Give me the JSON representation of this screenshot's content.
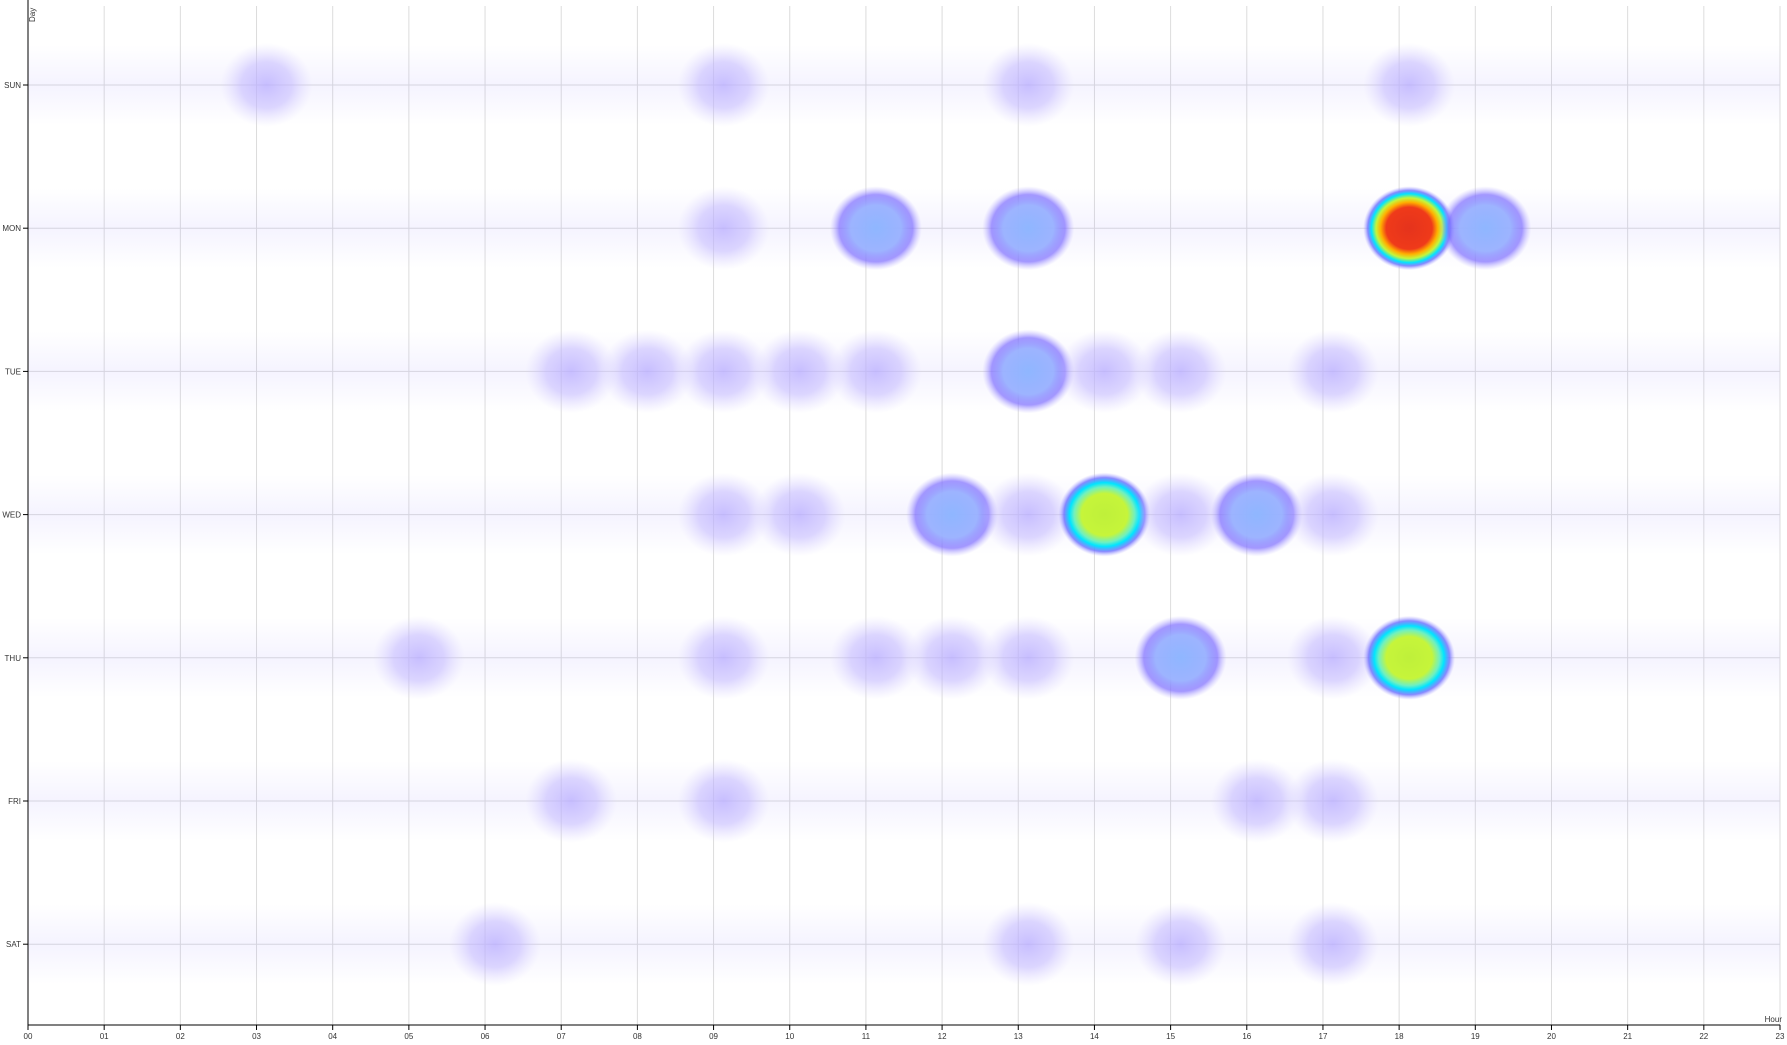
{
  "chart_data": {
    "type": "heatmap",
    "title": "",
    "xlabel": "Hour",
    "ylabel": "Day",
    "x": [
      "00",
      "01",
      "02",
      "03",
      "04",
      "05",
      "06",
      "07",
      "08",
      "09",
      "10",
      "11",
      "12",
      "13",
      "14",
      "15",
      "16",
      "17",
      "18",
      "19",
      "20",
      "21",
      "22",
      "23"
    ],
    "y": [
      "SUN",
      "MON",
      "TUE",
      "WED",
      "THU",
      "FRI",
      "SAT"
    ],
    "grid": true,
    "legend": "none",
    "colorscale": [
      "#ffffff",
      "#9a8cff",
      "#8fb6ff",
      "#00e5ff",
      "#c6f53a",
      "#ffd700",
      "#ff3b1a"
    ],
    "values": [
      [
        0,
        0,
        0,
        1,
        0,
        0,
        0,
        0,
        0,
        1,
        0,
        0,
        0,
        1,
        0,
        0,
        0,
        0,
        1,
        0,
        0,
        0,
        0,
        0
      ],
      [
        0,
        0,
        0,
        0,
        0,
        0,
        0,
        0,
        0,
        1,
        0,
        2,
        0,
        2,
        0,
        0,
        0,
        0,
        5,
        2,
        0,
        0,
        0,
        0
      ],
      [
        0,
        0,
        0,
        0,
        0,
        0,
        0,
        1,
        1,
        1,
        1,
        1,
        0,
        2,
        1,
        1,
        0,
        1,
        0,
        0,
        0,
        0,
        0,
        0
      ],
      [
        0,
        0,
        0,
        0,
        0,
        0,
        0,
        0,
        0,
        1,
        1,
        0,
        2,
        1,
        4,
        1,
        2,
        1,
        0,
        0,
        0,
        0,
        0,
        0
      ],
      [
        0,
        0,
        0,
        0,
        0,
        1,
        0,
        0,
        0,
        1,
        0,
        1,
        1,
        1,
        0,
        2,
        0,
        1,
        4,
        0,
        0,
        0,
        0,
        0
      ],
      [
        0,
        0,
        0,
        0,
        0,
        0,
        0,
        1,
        0,
        1,
        0,
        0,
        0,
        0,
        0,
        0,
        1,
        1,
        0,
        0,
        0,
        0,
        0,
        0
      ],
      [
        0,
        0,
        0,
        0,
        0,
        0,
        1,
        0,
        0,
        0,
        0,
        0,
        0,
        1,
        0,
        1,
        0,
        1,
        0,
        0,
        0,
        0,
        0,
        0
      ]
    ],
    "max": 5
  }
}
